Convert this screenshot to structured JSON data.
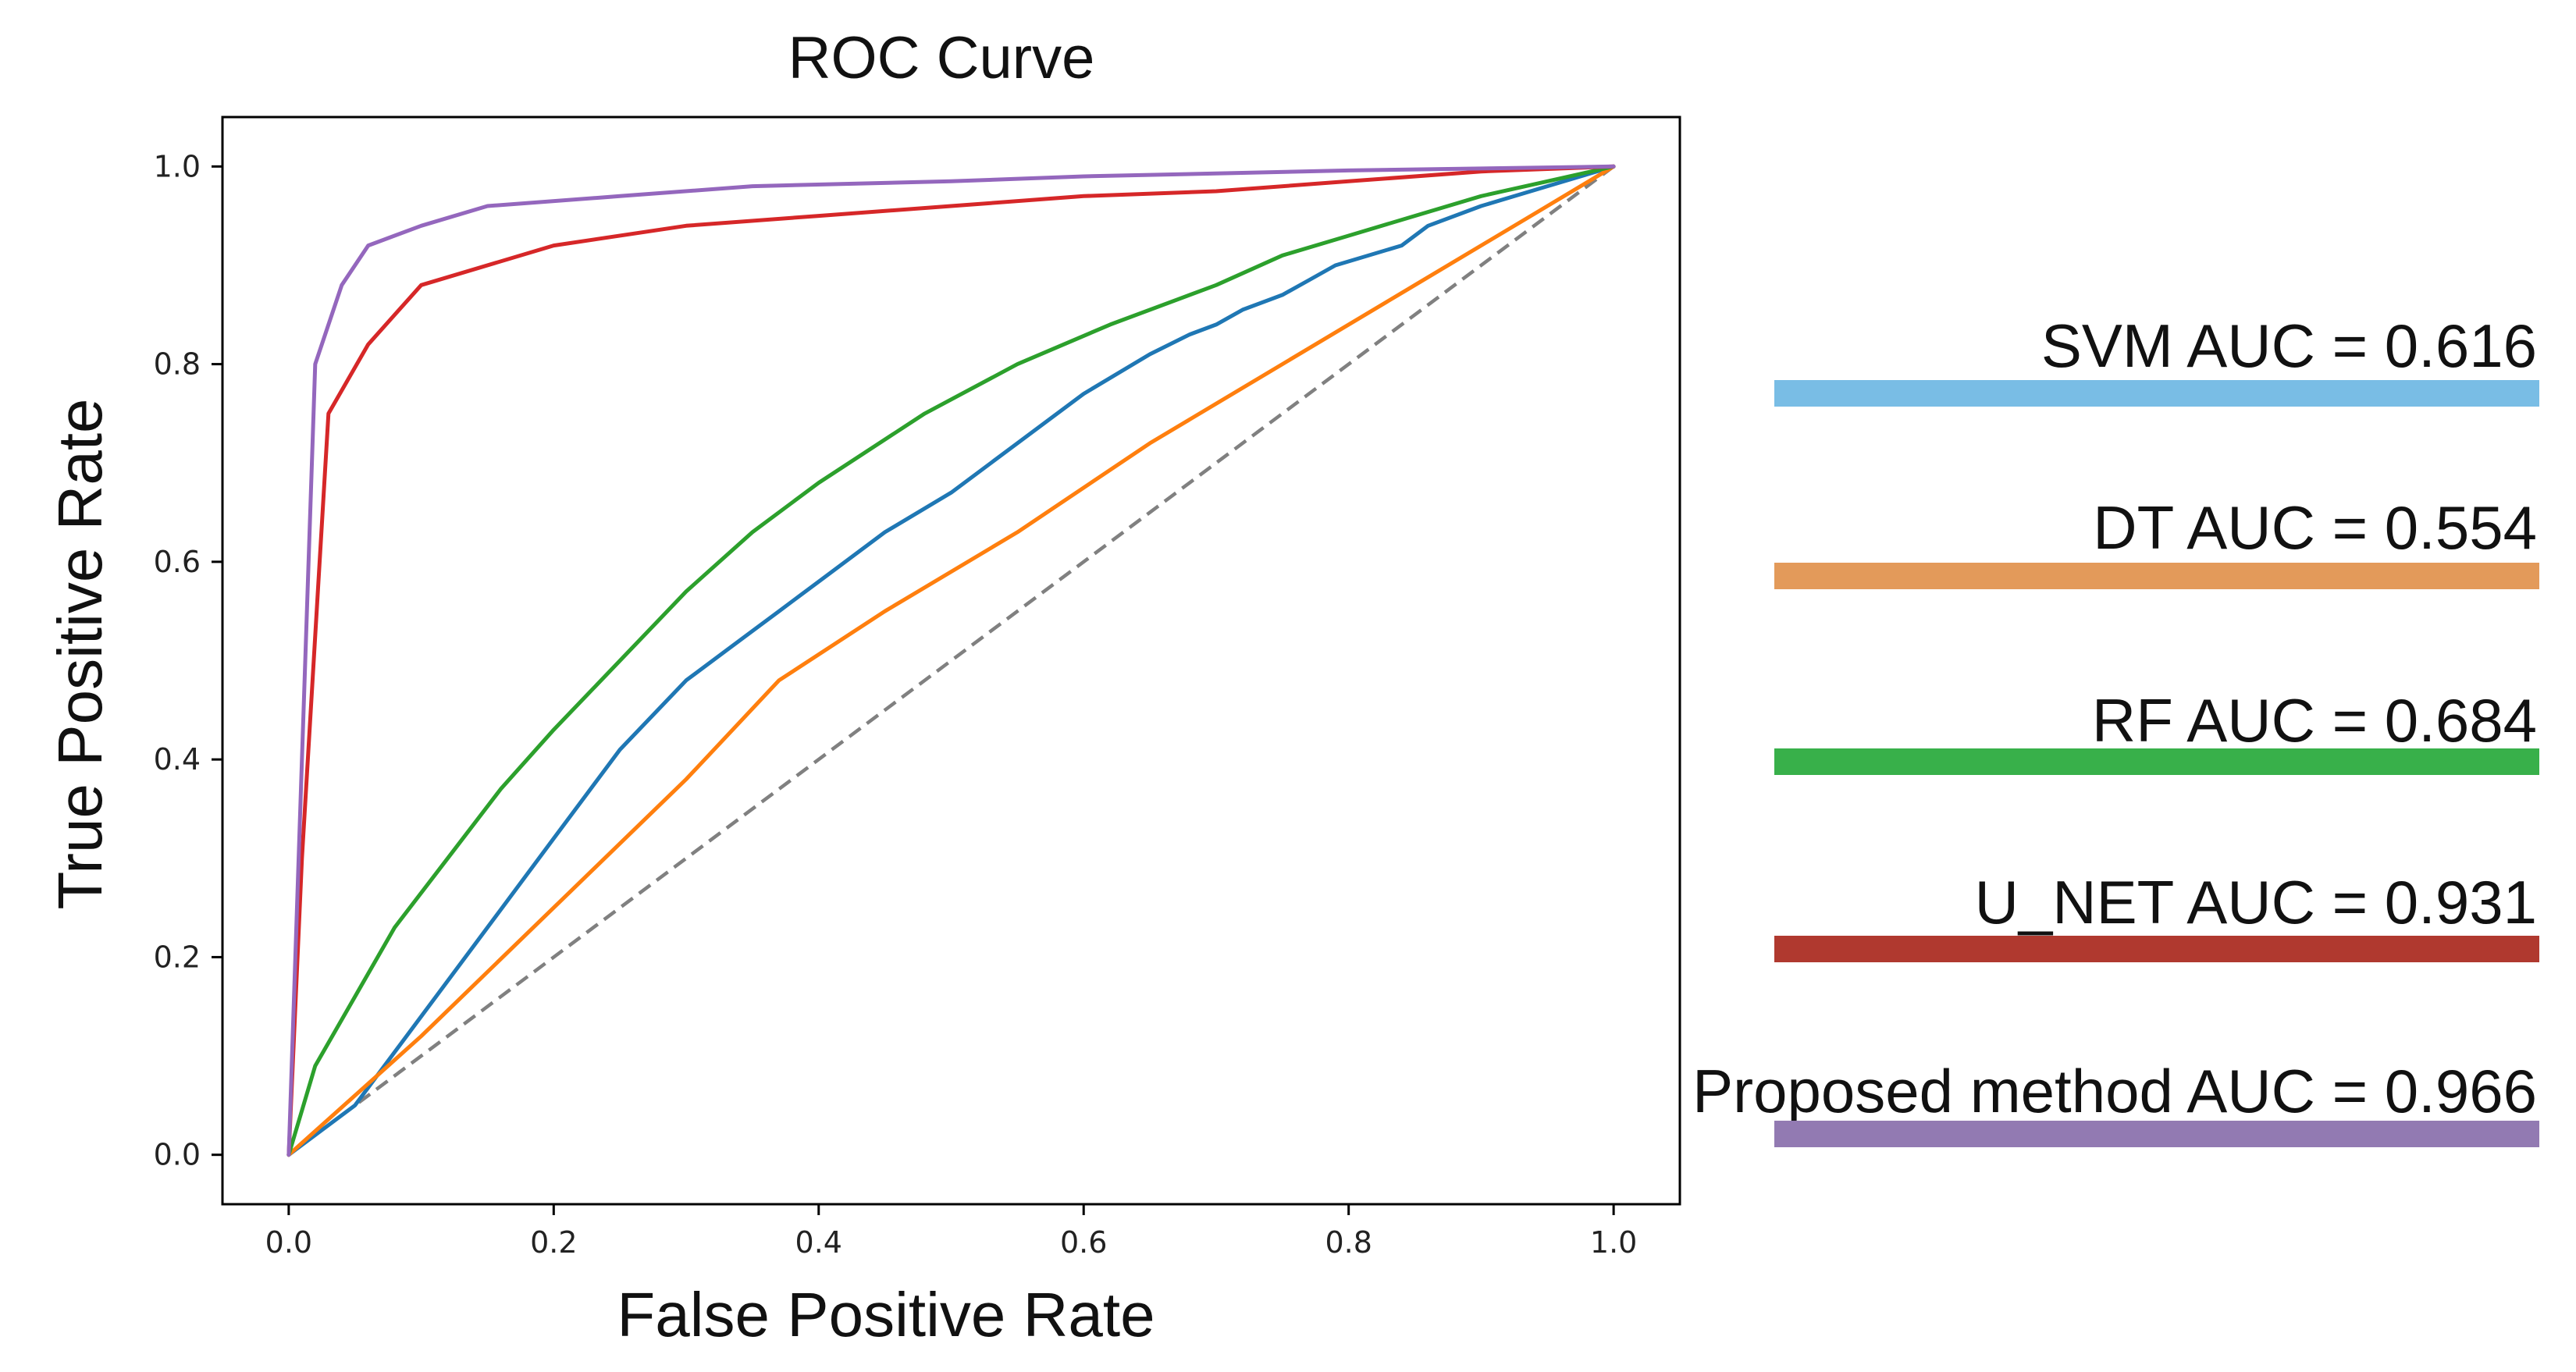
{
  "chart_data": {
    "type": "line",
    "title": "ROC Curve",
    "xlabel": "False Positive Rate",
    "ylabel": "True Positive Rate",
    "xlim": [
      -0.05,
      1.05
    ],
    "ylim": [
      -0.05,
      1.05
    ],
    "xticks": [
      0.0,
      0.2,
      0.4,
      0.6,
      0.8,
      1.0
    ],
    "yticks": [
      0.0,
      0.2,
      0.4,
      0.6,
      0.8,
      1.0
    ],
    "xtick_labels": [
      "0.0",
      "0.2",
      "0.4",
      "0.6",
      "0.8",
      "1.0"
    ],
    "ytick_labels": [
      "0.0",
      "0.2",
      "0.4",
      "0.6",
      "0.8",
      "1.0"
    ],
    "grid": false,
    "legend_position": "right",
    "diagonal": {
      "name": "chance",
      "color": "#808080",
      "style": "dashed",
      "x": [
        0,
        1
      ],
      "y": [
        0,
        1
      ]
    },
    "series": [
      {
        "name": "SVM",
        "legend_label": "SVM AUC = 0.616",
        "color": "#1f77b4",
        "legend_color": "#79bde5",
        "x": [
          0,
          0.05,
          0.1,
          0.15,
          0.2,
          0.25,
          0.3,
          0.33,
          0.35,
          0.37,
          0.4,
          0.45,
          0.5,
          0.55,
          0.6,
          0.65,
          0.68,
          0.7,
          0.72,
          0.75,
          0.77,
          0.79,
          0.84,
          0.86,
          0.9,
          0.95,
          1.0
        ],
        "y": [
          0,
          0.05,
          0.14,
          0.23,
          0.32,
          0.41,
          0.48,
          0.51,
          0.53,
          0.55,
          0.58,
          0.63,
          0.67,
          0.72,
          0.77,
          0.81,
          0.83,
          0.84,
          0.855,
          0.87,
          0.885,
          0.9,
          0.92,
          0.94,
          0.96,
          0.98,
          1.0
        ]
      },
      {
        "name": "DT",
        "legend_label": "DT AUC = 0.554",
        "color": "#ff7f0e",
        "legend_color": "#e39a5a",
        "x": [
          0,
          0.1,
          0.2,
          0.3,
          0.37,
          0.45,
          0.55,
          0.65,
          0.75,
          0.85,
          0.95,
          1.0
        ],
        "y": [
          0,
          0.12,
          0.25,
          0.38,
          0.48,
          0.55,
          0.63,
          0.72,
          0.8,
          0.88,
          0.96,
          1.0
        ]
      },
      {
        "name": "RF",
        "legend_label": "RF AUC = 0.684",
        "color": "#2ca02c",
        "legend_color": "#38b04a",
        "x": [
          0,
          0.02,
          0.05,
          0.08,
          0.12,
          0.16,
          0.2,
          0.25,
          0.3,
          0.35,
          0.4,
          0.48,
          0.55,
          0.62,
          0.7,
          0.75,
          0.8,
          0.85,
          0.9,
          0.95,
          1.0
        ],
        "y": [
          0,
          0.09,
          0.16,
          0.23,
          0.3,
          0.37,
          0.43,
          0.5,
          0.57,
          0.63,
          0.68,
          0.75,
          0.8,
          0.84,
          0.88,
          0.91,
          0.93,
          0.95,
          0.97,
          0.985,
          1.0
        ]
      },
      {
        "name": "U_NET",
        "legend_label": "U_NET AUC = 0.931",
        "color": "#d62728",
        "legend_color": "#b0392f",
        "x": [
          0,
          0.01,
          0.03,
          0.06,
          0.1,
          0.2,
          0.3,
          0.4,
          0.5,
          0.6,
          0.7,
          0.8,
          0.9,
          1.0
        ],
        "y": [
          0,
          0.3,
          0.75,
          0.82,
          0.88,
          0.92,
          0.94,
          0.95,
          0.96,
          0.97,
          0.975,
          0.985,
          0.995,
          1.0
        ]
      },
      {
        "name": "Proposed method",
        "legend_label": "Proposed method AUC = 0.966",
        "color": "#9467bd",
        "legend_color": "#927ab2",
        "x": [
          0,
          0.01,
          0.02,
          0.04,
          0.06,
          0.1,
          0.15,
          0.25,
          0.35,
          0.5,
          0.6,
          0.7,
          0.8,
          0.9,
          1.0
        ],
        "y": [
          0,
          0.4,
          0.8,
          0.88,
          0.92,
          0.94,
          0.96,
          0.97,
          0.98,
          0.985,
          0.99,
          0.993,
          0.996,
          0.998,
          1.0
        ]
      }
    ]
  }
}
